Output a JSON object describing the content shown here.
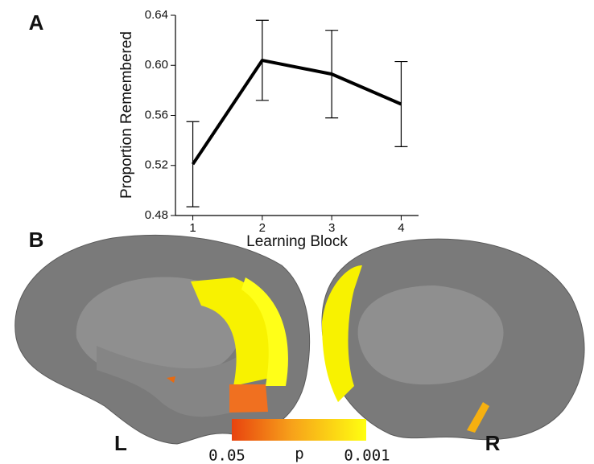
{
  "panels": {
    "a": "A",
    "b": "B",
    "left": "L",
    "right": "R"
  },
  "colorbar": {
    "low": "0.05",
    "symbol": "p",
    "high": "0.001"
  },
  "chart_data": {
    "type": "line",
    "x_label": "Learning Block",
    "y_label": "Proportion Remembered",
    "x": [
      1,
      2,
      3,
      4
    ],
    "values": [
      0.521,
      0.604,
      0.593,
      0.569
    ],
    "errors": [
      0.034,
      0.032,
      0.035,
      0.034
    ],
    "color": "#000000",
    "xlim": [
      0.75,
      4.25
    ],
    "xticks": [
      1,
      2,
      3,
      4
    ],
    "ylim": [
      0.48,
      0.64
    ],
    "yticks": [
      0.48,
      0.52,
      0.56,
      {
        "value": 0.6,
        "label": "0.60"
      },
      0.64
    ]
  }
}
